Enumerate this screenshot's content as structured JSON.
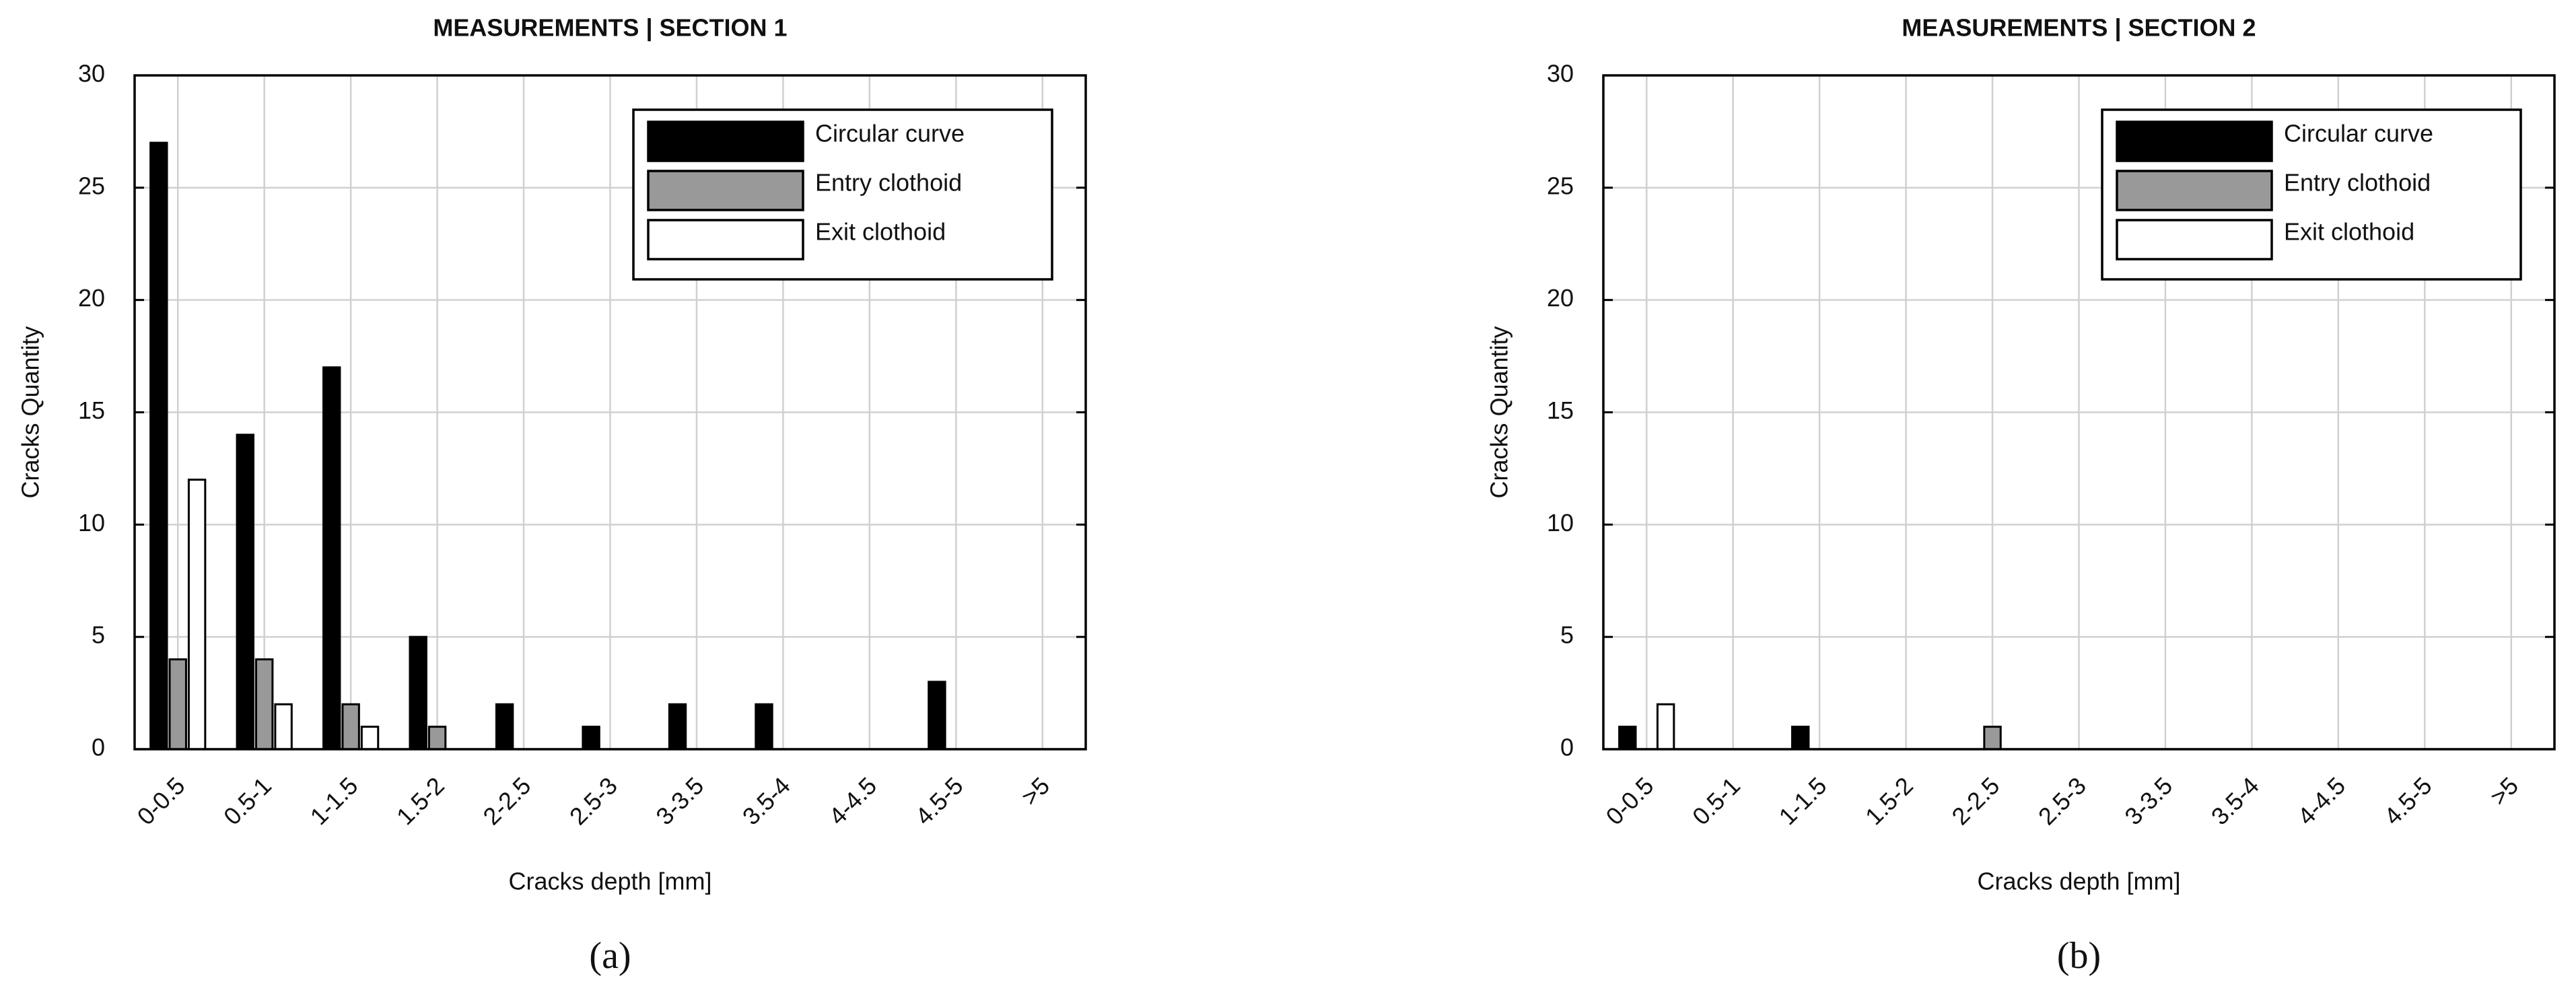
{
  "chart_data": [
    {
      "type": "bar",
      "title": "MEASUREMENTS | SECTION 1",
      "caption": "(a)",
      "xlabel": "Cracks depth [mm]",
      "ylabel": "Cracks Quantity",
      "categories": [
        "0-0.5",
        "0.5-1",
        "1-1.5",
        "1.5-2",
        "2-2.5",
        "2.5-3",
        "3-3.5",
        "3.5-4",
        "4-4.5",
        "4.5-5",
        ">5"
      ],
      "series": [
        {
          "name": "Circular curve",
          "color": "#000000",
          "values": [
            27,
            14,
            17,
            5,
            2,
            1,
            2,
            2,
            0,
            3,
            0
          ]
        },
        {
          "name": "Entry clothoid",
          "color": "#999999",
          "values": [
            4,
            4,
            2,
            1,
            0,
            0,
            0,
            0,
            0,
            0,
            0
          ]
        },
        {
          "name": "Exit clothoid",
          "color": "#ffffff",
          "values": [
            12,
            2,
            1,
            0,
            0,
            0,
            0,
            0,
            0,
            0,
            0
          ]
        }
      ],
      "ylim": [
        0,
        30
      ],
      "yticks": [
        0,
        5,
        10,
        15,
        20,
        25,
        30
      ],
      "grid": true,
      "legend": "upper right"
    },
    {
      "type": "bar",
      "title": "MEASUREMENTS | SECTION 2",
      "caption": "(b)",
      "xlabel": "Cracks depth [mm]",
      "ylabel": "Cracks Quantity",
      "categories": [
        "0-0.5",
        "0.5-1",
        "1-1.5",
        "1.5-2",
        "2-2.5",
        "2.5-3",
        "3-3.5",
        "3.5-4",
        "4-4.5",
        "4.5-5",
        ">5"
      ],
      "series": [
        {
          "name": "Circular curve",
          "color": "#000000",
          "values": [
            1,
            0,
            1,
            0,
            0,
            0,
            0,
            0,
            0,
            0,
            0
          ]
        },
        {
          "name": "Entry clothoid",
          "color": "#999999",
          "values": [
            0,
            0,
            0,
            0,
            1,
            0,
            0,
            0,
            0,
            0,
            0
          ]
        },
        {
          "name": "Exit clothoid",
          "color": "#ffffff",
          "values": [
            2,
            0,
            0,
            0,
            0,
            0,
            0,
            0,
            0,
            0,
            0
          ]
        }
      ],
      "ylim": [
        0,
        30
      ],
      "yticks": [
        0,
        5,
        10,
        15,
        20,
        25,
        30
      ],
      "grid": true,
      "legend": "upper right"
    }
  ]
}
